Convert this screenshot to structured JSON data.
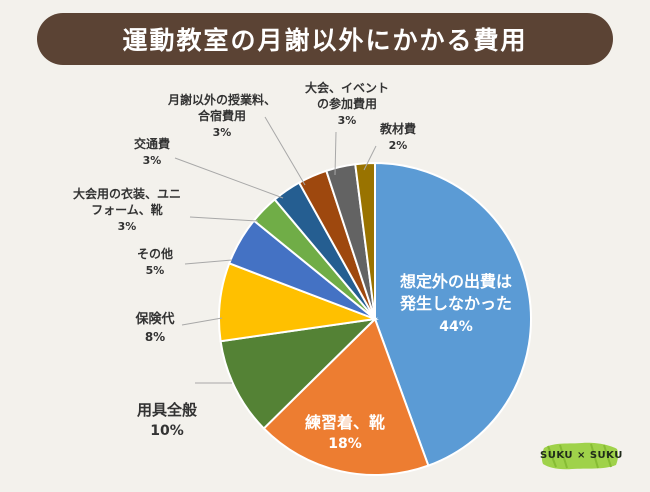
{
  "title": "運動教室の月謝以外にかかる費用",
  "logo_text": "SUKU × SUKU",
  "colors": {
    "title_bg": "#5b4334",
    "page_bg": "#f3f1ec",
    "leader": "#a8a8a8",
    "logo_green": "#9fd24a"
  },
  "chart_data": {
    "type": "pie",
    "title": "運動教室の月謝以外にかかる費用",
    "unit": "%",
    "start": "12 o'clock",
    "direction": "clockwise",
    "slices": [
      {
        "label_lines": [
          "想定外の出費は",
          "発生しなかった"
        ],
        "value": 44,
        "value_text": "44%",
        "color": "#5b9bd5",
        "label_position": "inside"
      },
      {
        "label_lines": [
          "練習着、靴"
        ],
        "value": 18,
        "value_text": "18%",
        "color": "#ed7d31",
        "label_position": "inside"
      },
      {
        "label_lines": [
          "用具全般"
        ],
        "value": 10,
        "value_text": "10%",
        "color": "#548235",
        "label_position": "outside"
      },
      {
        "label_lines": [
          "保険代"
        ],
        "value": 8,
        "value_text": "8%",
        "color": "#ffc000",
        "label_position": "outside"
      },
      {
        "label_lines": [
          "その他"
        ],
        "value": 5,
        "value_text": "5%",
        "color": "#4472c4",
        "label_position": "outside"
      },
      {
        "label_lines": [
          "大会用の衣装、ユニ",
          "フォーム、靴"
        ],
        "value": 3,
        "value_text": "3%",
        "color": "#70ad47",
        "label_position": "outside"
      },
      {
        "label_lines": [
          "交通費"
        ],
        "value": 3,
        "value_text": "3%",
        "color": "#255e91",
        "label_position": "outside"
      },
      {
        "label_lines": [
          "月謝以外の授業料、",
          "合宿費用"
        ],
        "value": 3,
        "value_text": "3%",
        "color": "#9e480e",
        "label_position": "outside"
      },
      {
        "label_lines": [
          "大会、イベント",
          "の参加費用"
        ],
        "value": 3,
        "value_text": "3%",
        "color": "#636363",
        "label_position": "outside"
      },
      {
        "label_lines": [
          "教材費"
        ],
        "value": 2,
        "value_text": "2%",
        "color": "#997300",
        "label_position": "outside"
      }
    ]
  }
}
